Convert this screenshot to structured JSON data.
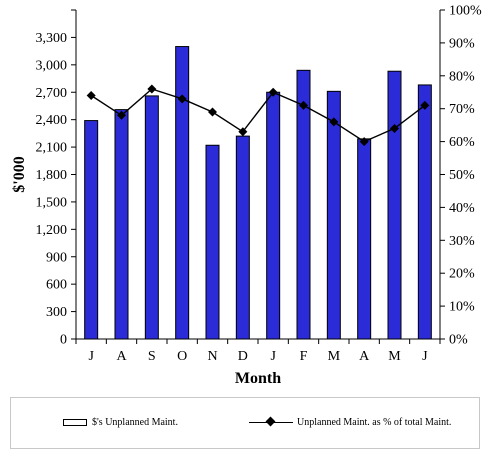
{
  "chart_data": {
    "type": "bar",
    "categories": [
      "J",
      "A",
      "S",
      "O",
      "N",
      "D",
      "J",
      "F",
      "M",
      "A",
      "M",
      "J"
    ],
    "series": [
      {
        "name": "$'s Unplanned Maint.",
        "kind": "bar",
        "axis": "left",
        "color": "#2b2bd8",
        "values": [
          2390,
          2510,
          2660,
          3200,
          2120,
          2220,
          2700,
          2940,
          2710,
          2190,
          2930,
          2780
        ]
      },
      {
        "name": "Unplanned Maint. as % of total Maint.",
        "kind": "line",
        "axis": "right",
        "color": "#000000",
        "values": [
          74,
          68,
          76,
          73,
          69,
          63,
          75,
          71,
          66,
          60,
          64,
          71
        ]
      }
    ],
    "xlabel": "Month",
    "ylabel": "$'000",
    "ylim": [
      0,
      3600
    ],
    "y2lim": [
      0,
      100
    ],
    "yticks": [
      "0",
      "300",
      "600",
      "900",
      "1,200",
      "1,500",
      "1,800",
      "2,100",
      "2,400",
      "2,700",
      "3,000",
      "3,300"
    ],
    "y2ticks": [
      "0%",
      "10%",
      "20%",
      "30%",
      "40%",
      "50%",
      "60%",
      "70%",
      "80%",
      "90%",
      "100%"
    ],
    "grid": false,
    "legend_position": "bottom"
  }
}
